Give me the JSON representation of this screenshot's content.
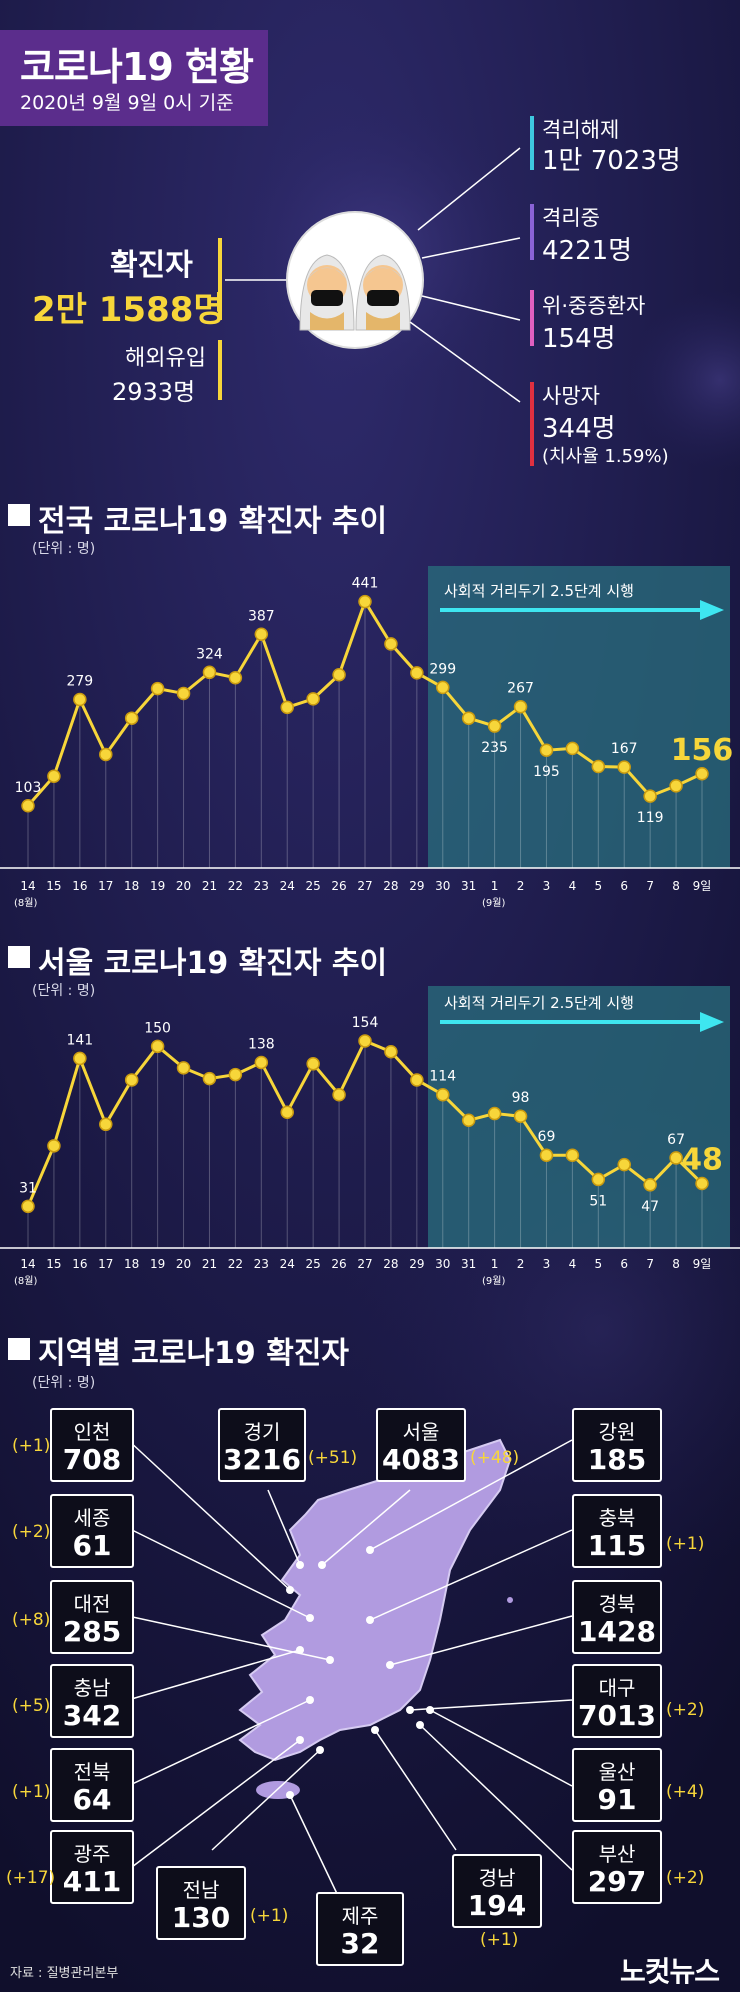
{
  "header": {
    "title": "코로나19 현황",
    "subtitle": "2020년 9월 9일 0시 기준"
  },
  "summary": {
    "confirmed_label": "확진자",
    "confirmed_value": "2만 1588명",
    "abroad_label": "해외유입",
    "abroad_value": "2933명",
    "released_label": "격리해제",
    "released_value": "1만 7023명",
    "isolated_label": "격리중",
    "isolated_value": "4221명",
    "severe_label": "위·중증환자",
    "severe_value": "154명",
    "death_label": "사망자",
    "death_value": "344명",
    "death_rate": "(치사율 1.59%)"
  },
  "colors": {
    "accent_yellow": "#f7d63a",
    "released": "#3ec8e0",
    "isolated": "#8a63d6",
    "severe": "#e060c0",
    "death": "#e03040",
    "shade_teal": "#2a6f7e",
    "map_purple": "#b19be0"
  },
  "national": {
    "title": "전국 코로나19 확진자 추이",
    "unit": "(단위 : 명)",
    "banner": "사회적 거리두기 2.5단계 시행",
    "month_aug": "(8월)",
    "month_sep": "(9월)",
    "last_tick": "9일"
  },
  "seoul": {
    "title": "서울 코로나19 확진자 추이",
    "unit": "(단위 : 명)",
    "banner": "사회적 거리두기 2.5단계 시행",
    "month_aug": "(8월)",
    "month_sep": "(9월)",
    "last_tick": "9일"
  },
  "regional": {
    "title": "지역별 코로나19 확진자",
    "unit": "(단위 : 명)",
    "regions": [
      {
        "name": "인천",
        "value": "708",
        "delta": "(+1)"
      },
      {
        "name": "경기",
        "value": "3216",
        "delta": "(+51)"
      },
      {
        "name": "서울",
        "value": "4083",
        "delta": "(+48)"
      },
      {
        "name": "강원",
        "value": "185",
        "delta": ""
      },
      {
        "name": "세종",
        "value": "61",
        "delta": "(+2)"
      },
      {
        "name": "충북",
        "value": "115",
        "delta": "(+1)"
      },
      {
        "name": "대전",
        "value": "285",
        "delta": "(+8)"
      },
      {
        "name": "경북",
        "value": "1428",
        "delta": ""
      },
      {
        "name": "충남",
        "value": "342",
        "delta": "(+5)"
      },
      {
        "name": "대구",
        "value": "7013",
        "delta": "(+2)"
      },
      {
        "name": "전북",
        "value": "64",
        "delta": "(+1)"
      },
      {
        "name": "울산",
        "value": "91",
        "delta": "(+4)"
      },
      {
        "name": "광주",
        "value": "411",
        "delta": "(+17)"
      },
      {
        "name": "부산",
        "value": "297",
        "delta": "(+2)"
      },
      {
        "name": "전남",
        "value": "130",
        "delta": "(+1)"
      },
      {
        "name": "경남",
        "value": "194",
        "delta": "(+1)"
      },
      {
        "name": "제주",
        "value": "32",
        "delta": ""
      }
    ]
  },
  "footer": {
    "source": "자료 : 질병관리본부",
    "logo": "노컷뉴스"
  },
  "chart_data": [
    {
      "type": "line",
      "title": "전국 코로나19 확진자 추이",
      "unit": "(단위 : 명)",
      "x": [
        "14",
        "15",
        "16",
        "17",
        "18",
        "19",
        "20",
        "21",
        "22",
        "23",
        "24",
        "25",
        "26",
        "27",
        "28",
        "29",
        "30",
        "31",
        "1",
        "2",
        "3",
        "4",
        "5",
        "6",
        "7",
        "8",
        "9일"
      ],
      "values": [
        103,
        152,
        279,
        188,
        248,
        297,
        289,
        324,
        315,
        387,
        266,
        280,
        320,
        441,
        371,
        323,
        299,
        248,
        235,
        267,
        195,
        198,
        168,
        167,
        119,
        136,
        156
      ],
      "labels": {
        "0": "103",
        "2": "279",
        "7": "324",
        "9": "387",
        "13": "441",
        "16": "299",
        "18": "235",
        "19": "267",
        "20": "195",
        "23": "167",
        "24": "119",
        "26": "156"
      },
      "ylim": [
        0,
        500
      ],
      "shaded_from": "30",
      "annotation": "사회적 거리두기 2.5단계 시행",
      "grid": true
    },
    {
      "type": "line",
      "title": "서울 코로나19 확진자 추이",
      "unit": "(단위 : 명)",
      "x": [
        "14",
        "15",
        "16",
        "17",
        "18",
        "19",
        "20",
        "21",
        "22",
        "23",
        "24",
        "25",
        "26",
        "27",
        "28",
        "29",
        "30",
        "31",
        "1",
        "2",
        "3",
        "4",
        "5",
        "6",
        "7",
        "8",
        "9일"
      ],
      "values": [
        31,
        76,
        141,
        92,
        125,
        150,
        134,
        126,
        129,
        138,
        101,
        137,
        114,
        154,
        146,
        125,
        114,
        95,
        100,
        98,
        69,
        69,
        51,
        62,
        47,
        67,
        48
      ],
      "labels": {
        "0": "31",
        "2": "141",
        "5": "150",
        "9": "138",
        "13": "154",
        "16": "114",
        "19": "98",
        "20": "69",
        "22": "51",
        "24": "47",
        "25": "67",
        "26": "48"
      },
      "ylim": [
        0,
        180
      ],
      "shaded_from": "30",
      "annotation": "사회적 거리두기 2.5단계 시행",
      "grid": true
    }
  ]
}
